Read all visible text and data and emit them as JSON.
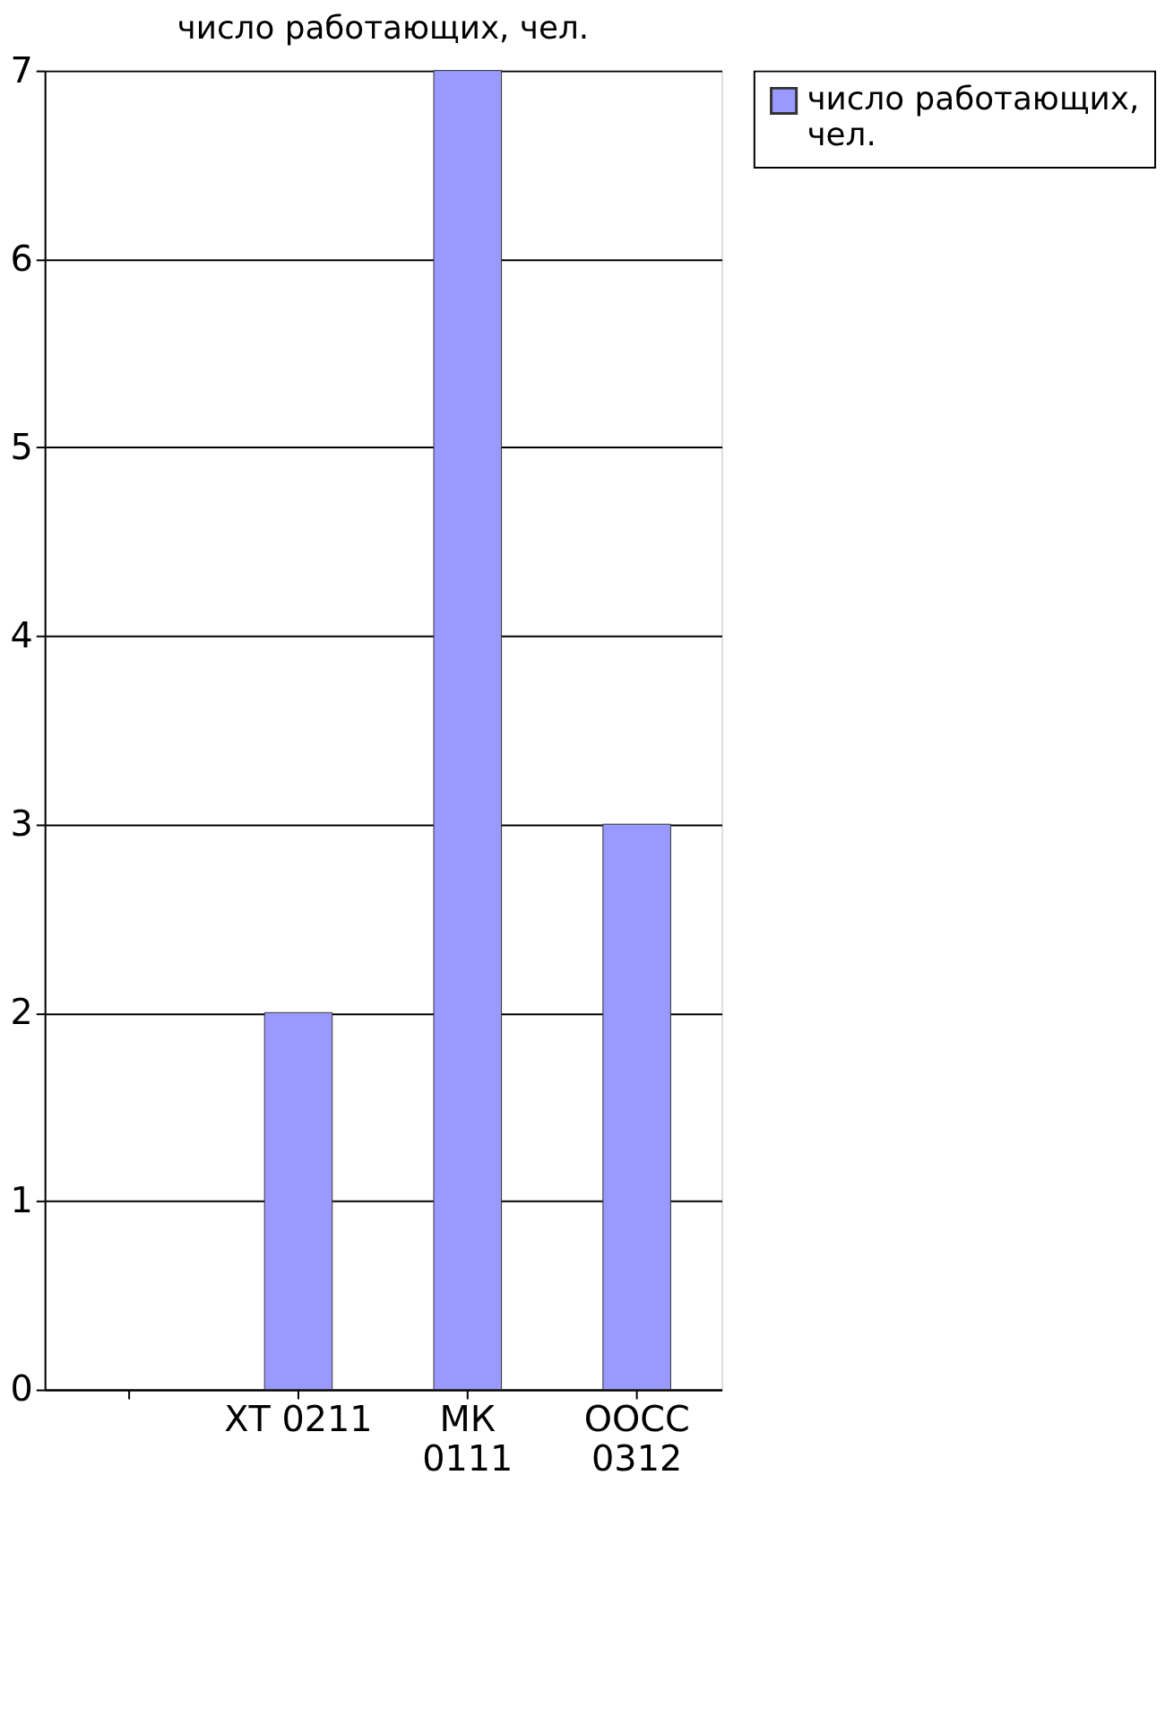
{
  "chart_data": {
    "type": "bar",
    "title": "число работающих, чел.",
    "categories": [
      null,
      "ХТ 0211",
      "МК\n0111",
      "ООСС\n0312"
    ],
    "series": [
      {
        "name": "число работающих, чел.",
        "color": "#9999ff",
        "values": [
          null,
          2,
          7,
          3
        ]
      }
    ],
    "ylim": [
      0,
      7
    ],
    "yticks": [
      0,
      1,
      2,
      3,
      4,
      5,
      6,
      7
    ],
    "grid": "y",
    "legend": "right"
  }
}
